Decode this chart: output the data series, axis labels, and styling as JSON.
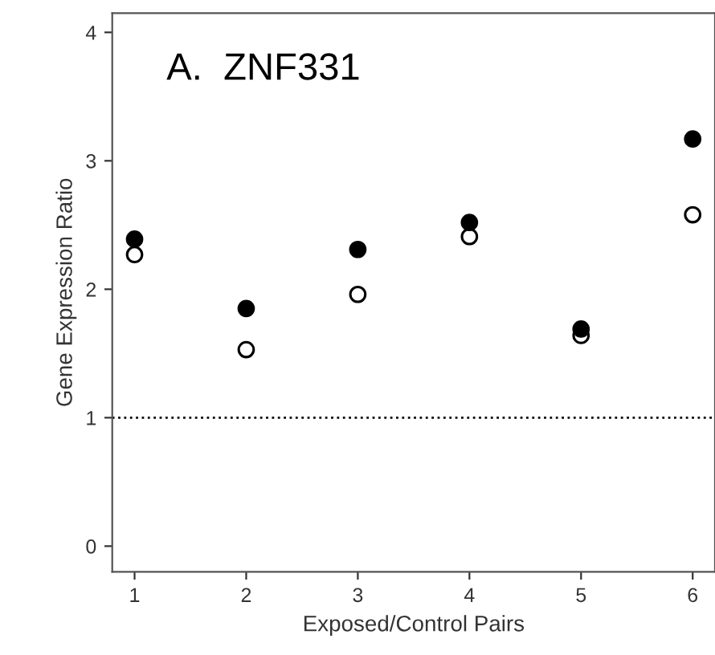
{
  "chart_data": {
    "type": "scatter",
    "title": "A.  ZNF331",
    "xlabel": "Exposed/Control Pairs",
    "ylabel": "Gene Expression Ratio",
    "x": [
      1,
      2,
      3,
      4,
      5,
      6
    ],
    "series": [
      {
        "color": "#000000",
        "marker": "circle",
        "values": [
          2.39,
          1.85,
          2.31,
          2.52,
          1.69,
          3.17
        ]
      },
      {
        "color": "#000000",
        "marker": "circle",
        "values": [
          2.27,
          1.53,
          1.96,
          2.41,
          1.64,
          2.58
        ]
      }
    ],
    "xlim": [
      0.8,
      6.2
    ],
    "ylim": [
      -0.2,
      4.15
    ],
    "xticks": [
      1,
      2,
      3,
      4,
      5,
      6
    ],
    "yticks": [
      0,
      1,
      2,
      3,
      4
    ],
    "ref_lines": [
      {
        "axis": "y",
        "value": 1,
        "color": "#000000",
        "line_style": "dotted"
      }
    ],
    "grid": false
  }
}
